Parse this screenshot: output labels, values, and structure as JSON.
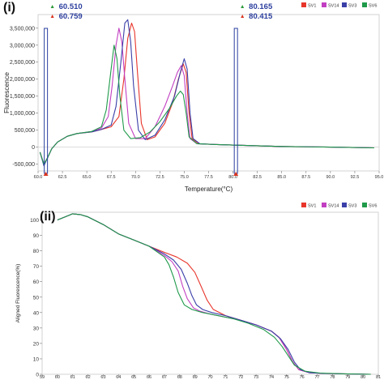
{
  "chart_data": [
    {
      "panel_label": "(i)",
      "type": "line",
      "xlabel": "Temperature(°C)",
      "ylabel": "Fluorescence",
      "xlim": [
        60.0,
        95.0
      ],
      "ylim": [
        -700000,
        3900000
      ],
      "x_ticks": [
        "60.0",
        "62.5",
        "65.0",
        "67.5",
        "70.0",
        "72.5",
        "75.0",
        "77.5",
        "80.0",
        "82.5",
        "85.0",
        "87.5",
        "90.0",
        "92.5",
        "95.0"
      ],
      "y_ticks": [
        {
          "v": -500000,
          "label": "-500,000"
        },
        {
          "v": 0,
          "label": "0"
        },
        {
          "v": 500000,
          "label": "500,000"
        },
        {
          "v": 1000000,
          "label": "1,000,000"
        },
        {
          "v": 1500000,
          "label": "1,500,000"
        },
        {
          "v": 2000000,
          "label": "2,000,000"
        },
        {
          "v": 2500000,
          "label": "2,500,000"
        },
        {
          "v": 3000000,
          "label": "3,000,000"
        },
        {
          "v": 3500000,
          "label": "3,500,000"
        }
      ],
      "legend": [
        "SV1",
        "SV14",
        "SV3",
        "SV6"
      ],
      "cursor_readouts": {
        "left": {
          "x": 60.8,
          "top_value": "60.510",
          "bottom_value": "60.759"
        },
        "right": {
          "x": 80.3,
          "top_value": "80.165",
          "bottom_value": "80.415"
        }
      },
      "series": [
        {
          "name": "SV1",
          "color": "#e8352b",
          "x": [
            60.2,
            60.6,
            61.0,
            61.4,
            62.0,
            63.0,
            64.0,
            65.5,
            66.5,
            67.5,
            68.3,
            68.8,
            69.2,
            69.6,
            69.9,
            70.2,
            70.6,
            71.2,
            72.0,
            73.0,
            73.8,
            74.4,
            74.9,
            75.2,
            75.5,
            75.8,
            76.5,
            78,
            80,
            85,
            90,
            94.5
          ],
          "y": [
            -150000,
            -500000,
            -300000,
            -50000,
            150000,
            320000,
            400000,
            450000,
            520000,
            600000,
            900000,
            2000000,
            3200000,
            3650000,
            3400000,
            2200000,
            700000,
            220000,
            300000,
            700000,
            1300000,
            2000000,
            2450000,
            2200000,
            1000000,
            250000,
            100000,
            80000,
            60000,
            20000,
            0,
            -20000
          ]
        },
        {
          "name": "SV14",
          "color": "#c23fc2",
          "x": [
            60.2,
            60.6,
            61.0,
            61.4,
            62.0,
            63.0,
            64.0,
            65.5,
            66.5,
            67.2,
            67.6,
            68.0,
            68.3,
            68.6,
            68.9,
            69.3,
            70.0,
            71.0,
            72.0,
            73.0,
            73.8,
            74.3,
            74.7,
            75.0,
            75.3,
            75.6,
            76.3,
            78,
            80,
            85,
            90,
            94.5
          ],
          "y": [
            -150000,
            -500000,
            -300000,
            -50000,
            150000,
            320000,
            400000,
            460000,
            560000,
            900000,
            1800000,
            3000000,
            3500000,
            3100000,
            2000000,
            700000,
            250000,
            250000,
            600000,
            1200000,
            1800000,
            2200000,
            2400000,
            2100000,
            1000000,
            250000,
            100000,
            80000,
            60000,
            20000,
            0,
            -20000
          ]
        },
        {
          "name": "SV3",
          "color": "#3a3fa8",
          "x": [
            60.2,
            60.6,
            61.0,
            61.4,
            62.0,
            63.0,
            64.0,
            65.5,
            66.5,
            67.5,
            68.0,
            68.5,
            68.9,
            69.2,
            69.5,
            69.8,
            70.3,
            71.0,
            72.0,
            73.0,
            74.0,
            74.6,
            75.0,
            75.3,
            75.6,
            75.9,
            76.6,
            78,
            80,
            85,
            90,
            94.5
          ],
          "y": [
            -150000,
            -550000,
            -300000,
            -50000,
            150000,
            320000,
            400000,
            450000,
            520000,
            650000,
            1200000,
            2500000,
            3650000,
            3750000,
            3100000,
            1800000,
            500000,
            220000,
            350000,
            800000,
            1500000,
            2200000,
            2600000,
            2300000,
            1000000,
            250000,
            100000,
            80000,
            60000,
            20000,
            0,
            -20000
          ]
        },
        {
          "name": "SV6",
          "color": "#1f9a4a",
          "x": [
            60.2,
            60.6,
            61.0,
            61.4,
            62.0,
            63.0,
            64.0,
            65.5,
            66.5,
            67.0,
            67.5,
            67.8,
            68.1,
            68.4,
            68.8,
            69.5,
            70.5,
            71.5,
            72.5,
            73.5,
            74.2,
            74.6,
            74.9,
            75.2,
            75.5,
            76.3,
            78,
            80,
            85,
            90,
            94.5
          ],
          "y": [
            -150000,
            -500000,
            -300000,
            -50000,
            150000,
            320000,
            400000,
            460000,
            600000,
            1100000,
            2300000,
            3000000,
            2600000,
            1500000,
            500000,
            250000,
            280000,
            450000,
            750000,
            1150000,
            1500000,
            1650000,
            1550000,
            1000000,
            300000,
            100000,
            80000,
            60000,
            20000,
            0,
            -20000
          ]
        }
      ]
    },
    {
      "panel_label": "(ii)",
      "type": "line",
      "xlabel": "",
      "ylabel": "Aligned Fluorescence(%)",
      "xlim": [
        59,
        81
      ],
      "ylim": [
        0,
        105
      ],
      "x_ticks": [
        "59",
        "60",
        "61",
        "62",
        "63",
        "64",
        "65",
        "66",
        "67",
        "68",
        "69",
        "70",
        "71",
        "72",
        "73",
        "74",
        "75",
        "76",
        "77",
        "78",
        "79",
        "80",
        "81"
      ],
      "y_ticks": [
        {
          "v": 0,
          "label": "0"
        },
        {
          "v": 10,
          "label": "10"
        },
        {
          "v": 20,
          "label": "20"
        },
        {
          "v": 30,
          "label": "30"
        },
        {
          "v": 40,
          "label": "40"
        },
        {
          "v": 50,
          "label": "50"
        },
        {
          "v": 60,
          "label": "60"
        },
        {
          "v": 70,
          "label": "70"
        },
        {
          "v": 80,
          "label": "80"
        },
        {
          "v": 90,
          "label": "90"
        },
        {
          "v": 100,
          "label": "100"
        }
      ],
      "legend": [
        "SV1",
        "SV14",
        "SV3",
        "SV6"
      ],
      "series": [
        {
          "name": "SV1",
          "color": "#e8352b",
          "x": [
            60,
            60.5,
            61,
            61.5,
            62,
            63,
            64,
            65,
            66,
            67,
            67.8,
            68.5,
            69,
            69.4,
            69.8,
            70.2,
            70.6,
            71,
            72,
            73,
            74,
            74.5,
            75,
            75.4,
            75.8,
            76.5,
            77.5,
            79,
            80.5
          ],
          "y": [
            100,
            102,
            104,
            103.5,
            102,
            97,
            91,
            87,
            83,
            79,
            76,
            72,
            66,
            57,
            48,
            42,
            40,
            38,
            35,
            32,
            28,
            24,
            16,
            8,
            3,
            1,
            0.5,
            0.2,
            0
          ]
        },
        {
          "name": "SV14",
          "color": "#c23fc2",
          "x": [
            60,
            60.5,
            61,
            61.5,
            62,
            63,
            64,
            65,
            66,
            67,
            67.5,
            67.9,
            68.2,
            68.5,
            68.9,
            69.3,
            70,
            71,
            72,
            73,
            74,
            74.5,
            75,
            75.4,
            75.8,
            76.5,
            77.5,
            79,
            80.5
          ],
          "y": [
            100,
            102,
            104,
            103.5,
            102,
            97,
            91,
            87,
            83,
            77,
            73,
            67,
            57,
            49,
            43,
            41,
            39,
            37,
            35,
            32,
            28,
            24,
            16,
            8,
            3,
            1,
            0.5,
            0.2,
            0
          ]
        },
        {
          "name": "SV3",
          "color": "#3a3fa8",
          "x": [
            60,
            60.5,
            61,
            61.5,
            62,
            63,
            64,
            65,
            66,
            67,
            67.6,
            68.1,
            68.5,
            68.8,
            69.1,
            69.5,
            70.1,
            71,
            72,
            73,
            74,
            74.6,
            75.1,
            75.5,
            75.9,
            76.5,
            77.5,
            79,
            80.5
          ],
          "y": [
            100,
            102,
            104,
            103.5,
            102,
            97,
            91,
            87,
            83,
            78,
            74,
            68,
            59,
            51,
            45,
            42,
            40,
            38,
            35,
            32,
            28,
            23,
            16,
            8,
            3,
            1,
            0.5,
            0.2,
            0
          ]
        },
        {
          "name": "SV6",
          "color": "#1f9a4a",
          "x": [
            60,
            60.5,
            61,
            61.5,
            62,
            63,
            64,
            65,
            66,
            67,
            67.3,
            67.6,
            67.9,
            68.3,
            68.8,
            69.5,
            70.5,
            71.5,
            72.5,
            73.5,
            74.2,
            74.7,
            75.1,
            75.5,
            76.2,
            77.2,
            79,
            80.5
          ],
          "y": [
            100,
            102,
            104,
            103.5,
            102,
            97,
            91,
            87,
            83,
            76,
            71,
            63,
            53,
            45,
            42,
            40,
            38,
            36,
            33,
            29,
            24,
            18,
            12,
            6,
            2,
            0.8,
            0.2,
            0
          ]
        }
      ]
    }
  ]
}
